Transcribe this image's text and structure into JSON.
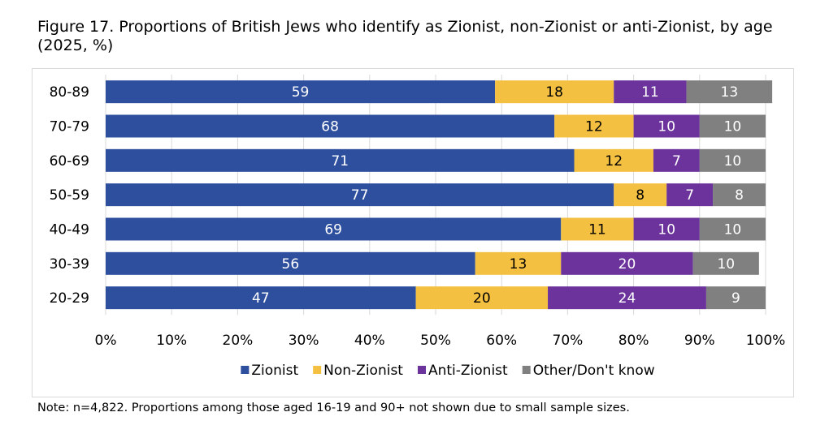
{
  "title": "Figure 17. Proportions of British Jews who identify as Zionist, non-Zionist or anti-Zionist, by age (2025, %)",
  "note": "Note: n=4,822. Proportions among those aged 16-19 and 90+ not shown due to small sample sizes.",
  "chart_data": {
    "type": "bar",
    "orientation": "horizontal",
    "stacked": true,
    "title": "Figure 17. Proportions of British Jews who identify as Zionist, non-Zionist or anti-Zionist, by age (2025, %)",
    "categories": [
      "80-89",
      "70-79",
      "60-69",
      "50-59",
      "40-49",
      "30-39",
      "20-29"
    ],
    "series": [
      {
        "name": "Zionist",
        "color": "#2e4f9e",
        "label_color": "#ffffff",
        "values": [
          59,
          68,
          71,
          77,
          69,
          56,
          47
        ]
      },
      {
        "name": "Non-Zionist",
        "color": "#f4c042",
        "label_color": "#000000",
        "values": [
          18,
          12,
          12,
          8,
          11,
          13,
          20
        ]
      },
      {
        "name": "Anti-Zionist",
        "color": "#6b339b",
        "label_color": "#ffffff",
        "values": [
          11,
          10,
          7,
          7,
          10,
          20,
          24
        ]
      },
      {
        "name": "Other/Don't know",
        "color": "#808080",
        "label_color": "#ffffff",
        "values": [
          13,
          10,
          10,
          8,
          10,
          10,
          9
        ]
      }
    ],
    "xlim": [
      0,
      100
    ],
    "xticks": [
      "0%",
      "10%",
      "20%",
      "30%",
      "40%",
      "50%",
      "60%",
      "70%",
      "80%",
      "90%",
      "100%"
    ],
    "grid": true,
    "legend_position": "bottom",
    "xlabel": "",
    "ylabel": ""
  }
}
